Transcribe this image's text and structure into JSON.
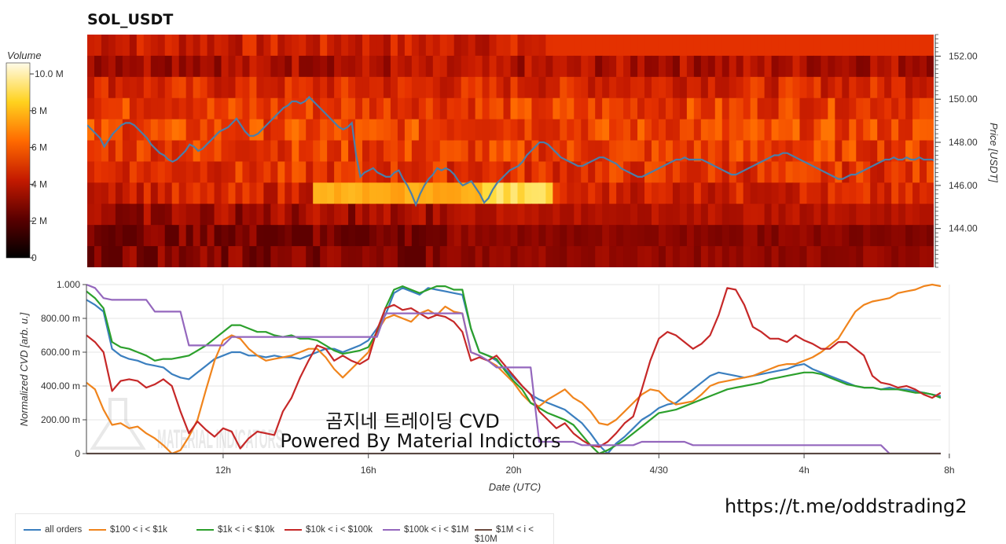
{
  "title": "SOL_USDT",
  "overlay": {
    "line1": "곰지네 트레이딩 CVD",
    "line2": "Powered By Material Indictors",
    "link": "https://t.me/oddstrading2",
    "watermark": "MATERIAL INDICATORS"
  },
  "colorbar": {
    "label": "Volume",
    "ticks": [
      "0",
      "2 M",
      "4 M",
      "6 M",
      "8 M",
      "10.0 M"
    ],
    "max": 10.6
  },
  "heatmap": {
    "ylabel": "Price [USDT]",
    "yticks": [
      "144.00",
      "146.00",
      "148.00",
      "150.00",
      "152.00"
    ],
    "ylim": [
      142.2,
      153
    ],
    "price_line": {
      "color": "#4a7faa",
      "t": [
        0,
        0.5,
        1,
        1.5,
        2,
        2.5,
        3,
        3.5,
        4,
        4.5,
        5,
        5.5,
        6,
        6.5,
        7,
        7.5,
        8,
        8.5,
        9,
        9.5,
        10,
        10.5,
        11,
        11.5,
        12,
        12.5,
        13,
        13.5,
        14,
        14.5,
        15,
        15.5,
        16,
        16.5,
        17,
        17.5,
        18,
        18.5,
        19,
        19.5,
        20,
        20.5,
        21,
        21.5,
        22,
        22.5,
        23,
        23.5,
        24,
        24.5,
        25,
        25.5,
        26,
        26.5,
        27,
        27.5,
        28,
        28.5,
        29,
        29.5,
        30,
        30.5,
        31,
        31.5,
        32,
        32.5,
        33,
        33.5,
        34,
        34.5,
        35,
        35.5,
        36,
        36.5,
        37,
        37.5,
        38,
        38.5,
        39,
        39.5,
        40,
        40.5,
        41,
        41.5,
        42,
        42.5,
        43,
        43.5,
        44,
        44.5,
        45,
        45.5,
        46,
        46.5,
        47,
        47.5,
        48,
        48.5,
        49,
        49.5,
        50,
        50.5,
        51,
        51.5,
        52,
        52.5,
        53,
        53.5,
        54,
        54.5,
        55,
        55.5,
        56,
        56.5,
        57,
        57.5,
        58,
        58.5,
        59,
        59.5,
        60,
        60.5,
        61,
        61.5,
        62,
        62.5,
        63,
        63.5,
        64,
        64.5,
        65,
        65.5,
        66,
        66.5,
        67,
        67.5,
        68,
        68.5,
        69,
        69.5,
        70,
        70.5,
        71,
        71.5,
        72,
        72.5,
        73,
        73.5,
        74,
        74.5,
        75,
        75.5,
        76,
        76.5,
        77,
        77.5,
        78,
        78.5,
        79,
        79.5,
        80,
        80.5,
        81,
        81.5,
        82,
        82.5,
        83,
        83.5,
        84,
        84.5,
        85,
        85.5,
        86,
        86.5,
        87,
        87.5,
        88,
        88.5,
        89,
        89.5,
        90,
        90.5,
        91,
        91.5,
        92,
        92.5,
        93,
        93.5,
        94,
        94.5,
        95,
        95.5,
        96,
        96.5,
        97,
        97.5,
        98,
        98.5,
        99,
        99.5,
        100
      ],
      "price": [
        148.8,
        148.6,
        148.4,
        148.2,
        147.8,
        148.1,
        148.4,
        148.6,
        148.8,
        148.9,
        148.9,
        148.8,
        148.6,
        148.4,
        148.2,
        147.9,
        147.7,
        147.5,
        147.4,
        147.2,
        147.1,
        147.2,
        147.4,
        147.6,
        147.9,
        147.8,
        147.6,
        147.7,
        147.9,
        148.1,
        148.3,
        148.5,
        148.6,
        148.7,
        148.9,
        149.1,
        148.8,
        148.5,
        148.3,
        148.3,
        148.4,
        148.6,
        148.8,
        149.0,
        149.2,
        149.4,
        149.6,
        149.7,
        149.9,
        149.9,
        149.8,
        149.9,
        150.1,
        149.9,
        149.7,
        149.5,
        149.3,
        149.1,
        148.9,
        148.7,
        148.6,
        148.7,
        148.9,
        147.4,
        146.4,
        146.6,
        146.7,
        146.8,
        146.6,
        146.5,
        146.4,
        146.4,
        146.6,
        146.7,
        146.3,
        146.0,
        145.6,
        145.1,
        145.6,
        146.0,
        146.3,
        146.5,
        146.8,
        146.7,
        146.8,
        146.7,
        146.5,
        146.2,
        146.0,
        146.1,
        146.2,
        145.9,
        145.6,
        145.2,
        145.4,
        145.8,
        146.1,
        146.3,
        146.5,
        146.7,
        146.8,
        146.9,
        147.1,
        147.4,
        147.6,
        147.8,
        148.0,
        148.0,
        147.9,
        147.7,
        147.5,
        147.3,
        147.2,
        147.1,
        147.0,
        146.9,
        146.9,
        147.0,
        147.1,
        147.2,
        147.3,
        147.3,
        147.2,
        147.1,
        147.0,
        146.8,
        146.7,
        146.6,
        146.5,
        146.4,
        146.4,
        146.5,
        146.6,
        146.7,
        146.8,
        146.9,
        147.0,
        147.1,
        147.2,
        147.2,
        147.3,
        147.2,
        147.2,
        147.2,
        147.2,
        147.1,
        147.0,
        146.9,
        146.8,
        146.7,
        146.6,
        146.5,
        146.5,
        146.6,
        146.7,
        146.8,
        146.9,
        147.0,
        147.1,
        147.2,
        147.3,
        147.4,
        147.4,
        147.5,
        147.5,
        147.4,
        147.3,
        147.2,
        147.1,
        147.0,
        146.9,
        146.8,
        146.7,
        146.6,
        146.5,
        146.4,
        146.3,
        146.3,
        146.4,
        146.5,
        146.5,
        146.6,
        146.7,
        146.8,
        146.9,
        147.0,
        147.1,
        147.2,
        147.2,
        147.3,
        147.2,
        147.2,
        147.3,
        147.2,
        147.2,
        147.3,
        147.2,
        147.2,
        147.2,
        147.1,
        147.2
      ]
    }
  },
  "chart_data": {
    "type": "line",
    "title": "SOL_USDT",
    "xlabel": "Date (UTC)",
    "ylabel": "Normalized CVD [arb. u.]",
    "xticks": [
      {
        "label": "12h",
        "t": 16
      },
      {
        "label": "16h",
        "t": 33
      },
      {
        "label": "20h",
        "t": 50
      },
      {
        "label": "4/30",
        "t": 67
      },
      {
        "label": "4h",
        "t": 84
      },
      {
        "label": "8h",
        "t": 101
      }
    ],
    "xlim": [
      0,
      100
    ],
    "yticks": [
      "0",
      "200.00 m",
      "400.00 m",
      "600.00 m",
      "800.00 m",
      "1.000"
    ],
    "ylim": [
      0,
      1
    ],
    "grid": true,
    "legend_position": "bottom-left",
    "x": [
      0,
      1,
      2,
      3,
      4,
      5,
      6,
      7,
      8,
      9,
      10,
      11,
      12,
      13,
      14,
      15,
      16,
      17,
      18,
      19,
      20,
      21,
      22,
      23,
      24,
      25,
      26,
      27,
      28,
      29,
      30,
      31,
      32,
      33,
      34,
      35,
      36,
      37,
      38,
      39,
      40,
      41,
      42,
      43,
      44,
      45,
      46,
      47,
      48,
      49,
      50,
      51,
      52,
      53,
      54,
      55,
      56,
      57,
      58,
      59,
      60,
      61,
      62,
      63,
      64,
      65,
      66,
      67,
      68,
      69,
      70,
      71,
      72,
      73,
      74,
      75,
      76,
      77,
      78,
      79,
      80,
      81,
      82,
      83,
      84,
      85,
      86,
      87,
      88,
      89,
      90,
      91,
      92,
      93,
      94,
      95,
      96,
      97,
      98,
      99,
      100
    ],
    "series": [
      {
        "name": "all orders",
        "color": "#3b7fbf",
        "values": [
          0.91,
          0.88,
          0.84,
          0.62,
          0.58,
          0.56,
          0.55,
          0.53,
          0.52,
          0.51,
          0.47,
          0.45,
          0.44,
          0.48,
          0.52,
          0.56,
          0.58,
          0.6,
          0.6,
          0.58,
          0.58,
          0.57,
          0.58,
          0.57,
          0.57,
          0.56,
          0.58,
          0.6,
          0.62,
          0.62,
          0.6,
          0.62,
          0.64,
          0.67,
          0.74,
          0.82,
          0.95,
          0.98,
          0.96,
          0.94,
          0.98,
          0.97,
          0.96,
          0.95,
          0.94,
          0.74,
          0.6,
          0.58,
          0.55,
          0.5,
          0.45,
          0.4,
          0.35,
          0.32,
          0.3,
          0.28,
          0.26,
          0.22,
          0.18,
          0.12,
          0.05,
          0.0,
          0.06,
          0.1,
          0.15,
          0.2,
          0.23,
          0.27,
          0.29,
          0.3,
          0.34,
          0.38,
          0.42,
          0.46,
          0.48,
          0.47,
          0.46,
          0.45,
          0.46,
          0.47,
          0.48,
          0.49,
          0.5,
          0.52,
          0.53,
          0.5,
          0.48,
          0.46,
          0.44,
          0.42,
          0.4,
          0.39,
          0.39,
          0.38,
          0.39,
          0.38,
          0.38,
          0.37,
          0.36,
          0.35,
          0.34
        ]
      },
      {
        "name": "$100 < i < $1k",
        "color": "#f0841c",
        "values": [
          0.42,
          0.38,
          0.26,
          0.17,
          0.18,
          0.15,
          0.16,
          0.12,
          0.09,
          0.05,
          0.0,
          0.02,
          0.1,
          0.2,
          0.38,
          0.55,
          0.67,
          0.7,
          0.68,
          0.62,
          0.58,
          0.55,
          0.56,
          0.57,
          0.58,
          0.6,
          0.62,
          0.62,
          0.57,
          0.5,
          0.45,
          0.5,
          0.55,
          0.6,
          0.72,
          0.8,
          0.82,
          0.8,
          0.78,
          0.83,
          0.85,
          0.82,
          0.87,
          0.84,
          0.83,
          0.6,
          0.58,
          0.55,
          0.52,
          0.47,
          0.42,
          0.35,
          0.3,
          0.28,
          0.32,
          0.35,
          0.38,
          0.33,
          0.3,
          0.25,
          0.18,
          0.17,
          0.2,
          0.25,
          0.3,
          0.35,
          0.38,
          0.37,
          0.32,
          0.29,
          0.3,
          0.31,
          0.35,
          0.4,
          0.42,
          0.43,
          0.44,
          0.45,
          0.46,
          0.48,
          0.5,
          0.52,
          0.53,
          0.53,
          0.55,
          0.57,
          0.6,
          0.64,
          0.68,
          0.76,
          0.84,
          0.88,
          0.9,
          0.91,
          0.92,
          0.95,
          0.96,
          0.97,
          0.99,
          1.0,
          0.99
        ]
      },
      {
        "name": "$1k < i < $10k",
        "color": "#2ca02c",
        "values": [
          0.96,
          0.92,
          0.86,
          0.66,
          0.63,
          0.62,
          0.6,
          0.58,
          0.55,
          0.56,
          0.56,
          0.57,
          0.58,
          0.61,
          0.64,
          0.68,
          0.72,
          0.76,
          0.76,
          0.74,
          0.72,
          0.72,
          0.7,
          0.69,
          0.7,
          0.68,
          0.68,
          0.67,
          0.64,
          0.61,
          0.59,
          0.6,
          0.61,
          0.63,
          0.72,
          0.86,
          0.97,
          0.99,
          0.97,
          0.95,
          0.97,
          0.99,
          0.99,
          0.97,
          0.97,
          0.74,
          0.6,
          0.58,
          0.56,
          0.49,
          0.43,
          0.38,
          0.3,
          0.27,
          0.24,
          0.22,
          0.2,
          0.17,
          0.11,
          0.05,
          0.0,
          0.02,
          0.05,
          0.08,
          0.12,
          0.16,
          0.2,
          0.24,
          0.25,
          0.26,
          0.28,
          0.3,
          0.32,
          0.34,
          0.36,
          0.38,
          0.39,
          0.4,
          0.41,
          0.42,
          0.44,
          0.45,
          0.46,
          0.47,
          0.48,
          0.48,
          0.47,
          0.45,
          0.43,
          0.41,
          0.4,
          0.39,
          0.39,
          0.38,
          0.38,
          0.38,
          0.37,
          0.36,
          0.36,
          0.35,
          0.33
        ]
      },
      {
        "name": "$10k < i < $100k",
        "color": "#c62828",
        "values": [
          0.7,
          0.66,
          0.6,
          0.37,
          0.43,
          0.44,
          0.43,
          0.39,
          0.41,
          0.44,
          0.4,
          0.25,
          0.12,
          0.19,
          0.14,
          0.1,
          0.15,
          0.13,
          0.03,
          0.09,
          0.13,
          0.12,
          0.11,
          0.25,
          0.33,
          0.45,
          0.55,
          0.64,
          0.62,
          0.55,
          0.58,
          0.55,
          0.53,
          0.56,
          0.73,
          0.86,
          0.88,
          0.85,
          0.86,
          0.83,
          0.8,
          0.82,
          0.81,
          0.78,
          0.72,
          0.55,
          0.57,
          0.55,
          0.58,
          0.52,
          0.46,
          0.4,
          0.35,
          0.25,
          0.2,
          0.15,
          0.18,
          0.12,
          0.08,
          0.05,
          0.04,
          0.07,
          0.12,
          0.18,
          0.22,
          0.38,
          0.55,
          0.68,
          0.72,
          0.7,
          0.66,
          0.62,
          0.65,
          0.7,
          0.82,
          0.98,
          0.97,
          0.88,
          0.75,
          0.72,
          0.68,
          0.68,
          0.66,
          0.7,
          0.67,
          0.65,
          0.62,
          0.62,
          0.66,
          0.66,
          0.62,
          0.58,
          0.46,
          0.42,
          0.41,
          0.39,
          0.4,
          0.38,
          0.35,
          0.33,
          0.36
        ]
      },
      {
        "name": "$100k < i < $1M",
        "color": "#9467bd",
        "values": [
          1.0,
          0.98,
          0.92,
          0.91,
          0.91,
          0.91,
          0.91,
          0.91,
          0.84,
          0.84,
          0.84,
          0.84,
          0.64,
          0.64,
          0.64,
          0.64,
          0.64,
          0.69,
          0.69,
          0.69,
          0.69,
          0.69,
          0.69,
          0.69,
          0.69,
          0.69,
          0.69,
          0.69,
          0.69,
          0.69,
          0.69,
          0.69,
          0.69,
          0.69,
          0.69,
          0.83,
          0.83,
          0.83,
          0.83,
          0.83,
          0.83,
          0.83,
          0.83,
          0.83,
          0.83,
          0.6,
          0.58,
          0.55,
          0.51,
          0.51,
          0.51,
          0.51,
          0.51,
          0.07,
          0.07,
          0.07,
          0.07,
          0.07,
          0.05,
          0.05,
          0.05,
          0.05,
          0.05,
          0.05,
          0.05,
          0.07,
          0.07,
          0.07,
          0.07,
          0.07,
          0.07,
          0.05,
          0.05,
          0.05,
          0.05,
          0.05,
          0.05,
          0.05,
          0.05,
          0.05,
          0.05,
          0.05,
          0.05,
          0.05,
          0.05,
          0.05,
          0.05,
          0.05,
          0.05,
          0.05,
          0.05,
          0.05,
          0.05,
          0.05,
          0.0,
          0.0,
          0.0,
          0.0,
          0.0,
          0.0,
          0.0
        ]
      },
      {
        "name": "$1M < i < $10M",
        "color": "#6d4c41",
        "values": [
          0.0,
          0.0,
          0.0,
          0.0,
          0.0,
          0.0,
          0.0,
          0.0,
          0.0,
          0.0,
          0.0,
          0.0,
          0.0,
          0.0,
          0.0,
          0.0,
          0.0,
          0.0,
          0.0,
          0.0,
          0.0,
          0.0,
          0.0,
          0.0,
          0.0,
          0.0,
          0.0,
          0.0,
          0.0,
          0.0,
          0.0,
          0.0,
          0.0,
          0.0,
          0.0,
          0.0,
          0.0,
          0.0,
          0.0,
          0.0,
          0.0,
          0.0,
          0.0,
          0.0,
          0.0,
          0.0,
          0.0,
          0.0,
          0.0,
          0.0,
          0.0,
          0.0,
          0.0,
          0.0,
          0.0,
          0.0,
          0.0,
          0.0,
          0.0,
          0.0,
          0.0,
          0.0,
          0.0,
          0.0,
          0.0,
          0.0,
          0.0,
          0.0,
          0.0,
          0.0,
          0.0,
          0.0,
          0.0,
          0.0,
          0.0,
          0.0,
          0.0,
          0.0,
          0.0,
          0.0,
          0.0,
          0.0,
          0.0,
          0.0,
          0.0,
          0.0,
          0.0,
          0.0,
          0.0,
          0.0,
          0.0,
          0.0,
          0.0,
          0.0,
          0.0,
          0.0,
          0.0,
          0.0,
          0.0,
          0.0,
          0.0
        ]
      }
    ]
  }
}
